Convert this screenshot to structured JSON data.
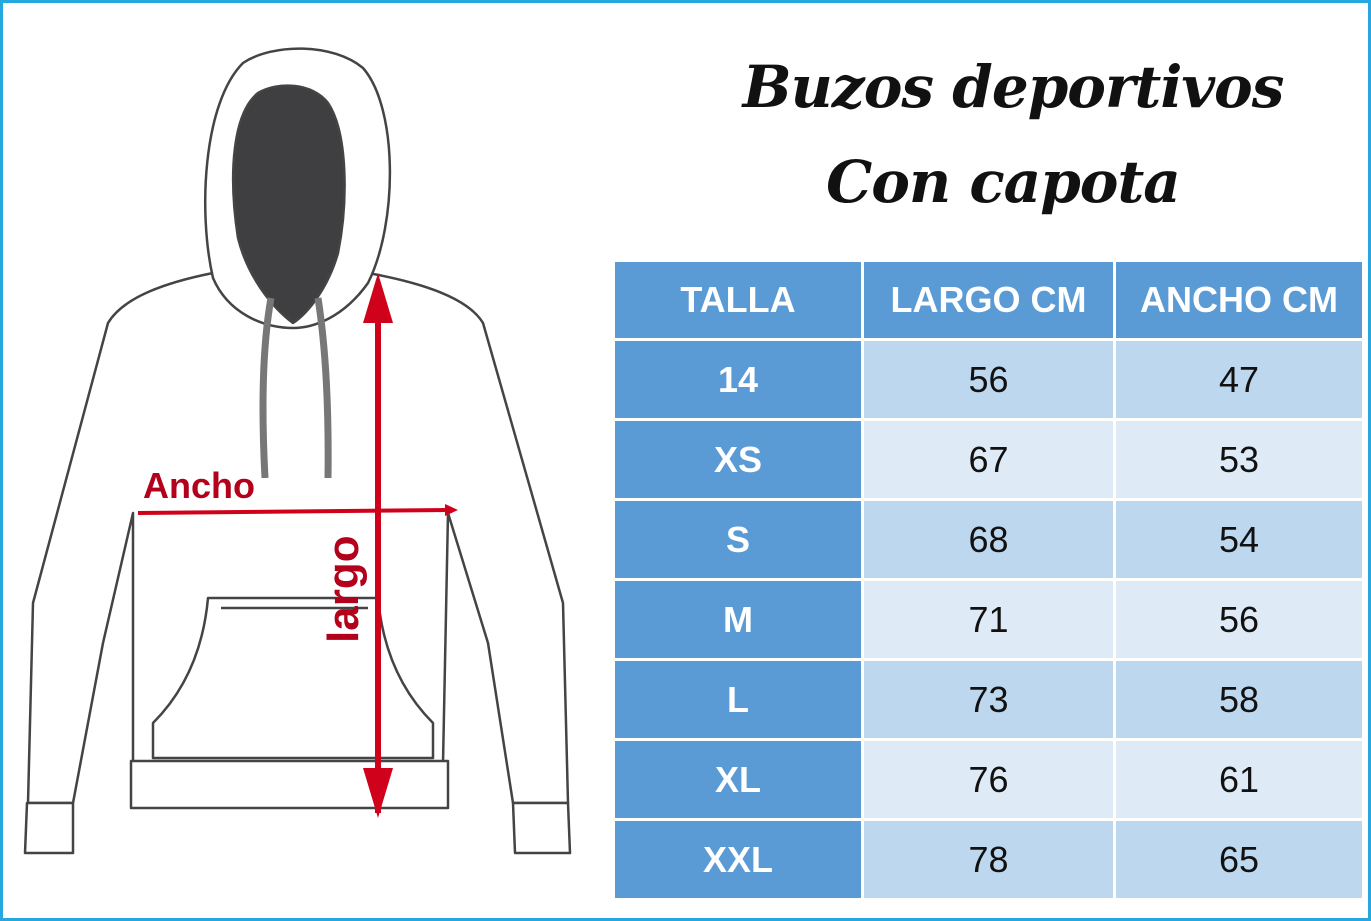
{
  "title": {
    "line1": "Buzos deportivos",
    "line2": "Con capota"
  },
  "illustration": {
    "width_label": "Ancho",
    "length_label": "largo",
    "arrow_color": "#d0021b"
  },
  "table": {
    "headers": [
      "TALLA",
      "LARGO CM",
      "ANCHO CM"
    ],
    "rows": [
      {
        "talla": "14",
        "largo": "56",
        "ancho": "47"
      },
      {
        "talla": "XS",
        "largo": "67",
        "ancho": "53"
      },
      {
        "talla": "S",
        "largo": "68",
        "ancho": "54"
      },
      {
        "talla": "M",
        "largo": "71",
        "ancho": "56"
      },
      {
        "talla": "L",
        "largo": "73",
        "ancho": "58"
      },
      {
        "talla": "XL",
        "largo": "76",
        "ancho": "61"
      },
      {
        "talla": "XXL",
        "largo": "78",
        "ancho": "65"
      }
    ]
  },
  "colors": {
    "header": "#5b9bd5",
    "row_dark": "#bdd7ee",
    "row_light": "#deebf7",
    "frame": "#27a7df"
  }
}
